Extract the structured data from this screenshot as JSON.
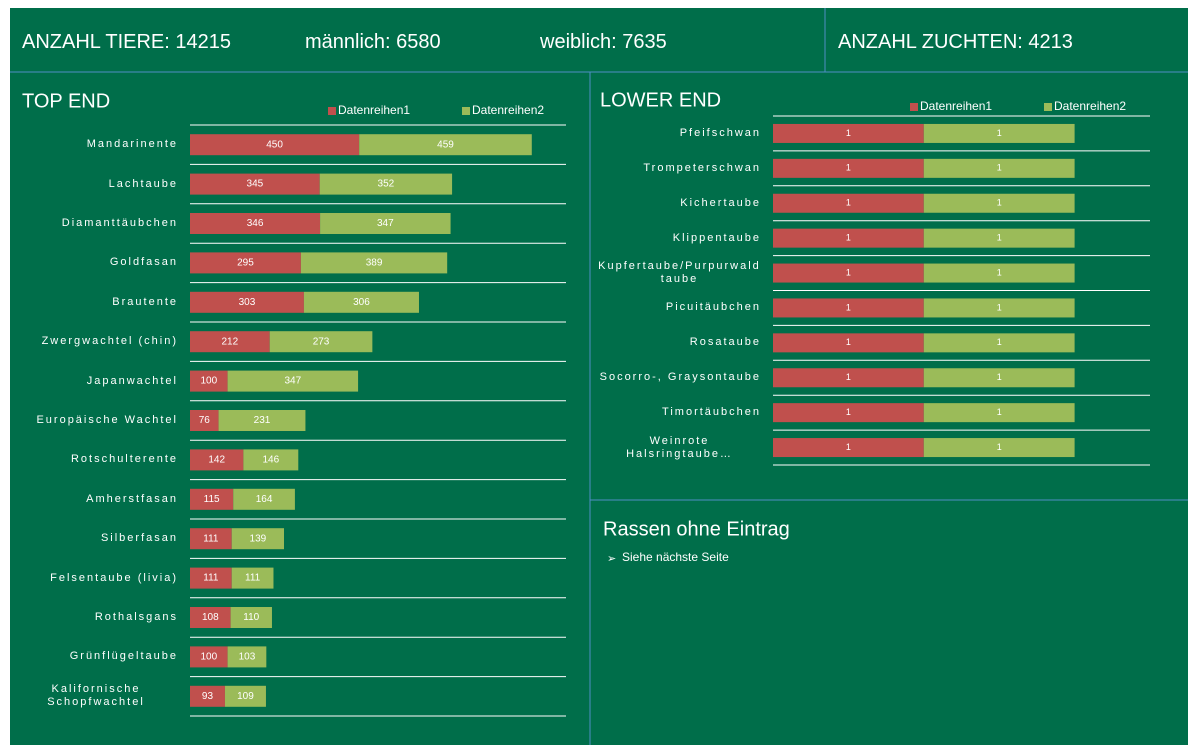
{
  "header": {
    "total": "ANZAHL TIERE: 14215",
    "male": "männlich: 6580",
    "female": "weiblich: 7635",
    "breeds": "ANZAHL ZUCHTEN: 4213"
  },
  "chart_data": [
    {
      "type": "bar",
      "title": "TOP END",
      "orientation": "horizontal",
      "stacked": true,
      "categories": [
        "Mandarinente",
        "Lachtaube",
        "Diamanttäubchen",
        "Goldfasan",
        "Brautente",
        "Zwergwachtel (chin)",
        "Japanwachtel",
        "Europäische Wachtel",
        "Rotschulterente",
        "Amherstfasan",
        "Silberfasan",
        "Felsentaube (livia)",
        "Rothalsgans",
        "Grünflügeltaube",
        "Kalifornische Schopfwachtel"
      ],
      "series": [
        {
          "name": "Datenreihen1",
          "color": "#c0504d",
          "values": [
            450,
            345,
            346,
            295,
            303,
            212,
            100,
            76,
            142,
            115,
            111,
            111,
            108,
            100,
            93
          ]
        },
        {
          "name": "Datenreihen2",
          "color": "#9bbb59",
          "values": [
            459,
            352,
            347,
            389,
            306,
            273,
            347,
            231,
            146,
            164,
            139,
            111,
            110,
            103,
            109
          ]
        }
      ],
      "xlim": [
        0,
        1000
      ],
      "legend": "top-right"
    },
    {
      "type": "bar",
      "title": "LOWER END",
      "orientation": "horizontal",
      "stacked": true,
      "categories": [
        "Pfeifschwan",
        "Trompeterschwan",
        "Kichertaube",
        "Klippentaube",
        "Kupfertaube/Purpurwaldtaube",
        "Picuitäubchen",
        "Rosataube",
        "Socorro-, Graysontaube",
        "Timortäubchen",
        "Weinrote Halsringtaube…"
      ],
      "series": [
        {
          "name": "Datenreihen1",
          "color": "#c0504d",
          "values": [
            1,
            1,
            1,
            1,
            1,
            1,
            1,
            1,
            1,
            1
          ]
        },
        {
          "name": "Datenreihen2",
          "color": "#9bbb59",
          "values": [
            1,
            1,
            1,
            1,
            1,
            1,
            1,
            1,
            1,
            1
          ]
        }
      ],
      "xlim": [
        0,
        2.5
      ],
      "legend": "top-right"
    }
  ],
  "notes": {
    "title": "Rassen ohne Eintrag",
    "items": [
      "Siehe nächste Seite"
    ]
  }
}
